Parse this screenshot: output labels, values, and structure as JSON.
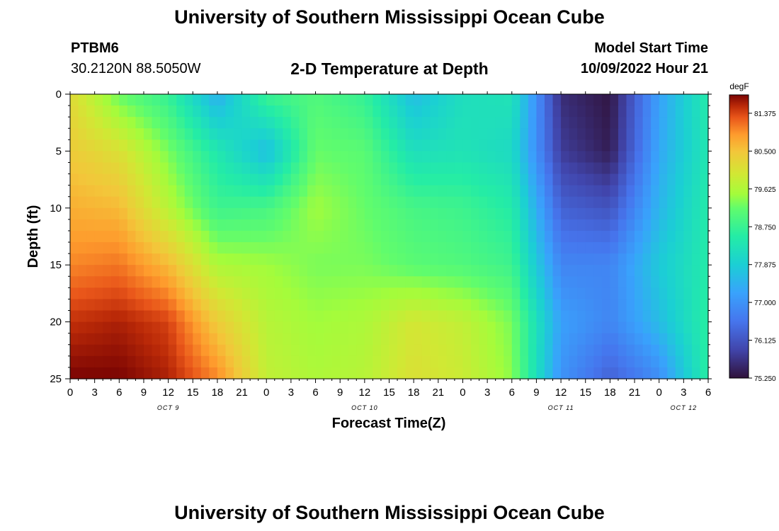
{
  "header": {
    "title": "University of Southern Mississippi Ocean Cube",
    "station": "PTBM6",
    "coords": "30.2120N  88.5050W",
    "chart_title": "2-D Temperature at Depth",
    "model_start_label": "Model Start Time",
    "model_start_value": "10/09/2022 Hour 21"
  },
  "footer": {
    "title": "University of Southern Mississippi Ocean Cube"
  },
  "chart_data": {
    "type": "heatmap",
    "title": "2-D Temperature at Depth",
    "xlabel": "Forecast Time(Z)",
    "ylabel": "Depth (ft)",
    "x_tick_labels": [
      "0",
      "3",
      "6",
      "9",
      "12",
      "15",
      "18",
      "21",
      "0",
      "3",
      "6",
      "9",
      "12",
      "15",
      "18",
      "21",
      "0",
      "3",
      "6",
      "9",
      "12",
      "15",
      "18",
      "21",
      "0",
      "3",
      "6"
    ],
    "x_range_hours": [
      0,
      78
    ],
    "date_labels": [
      {
        "label": "OCT 9",
        "hour": 12
      },
      {
        "label": "OCT 10",
        "hour": 36
      },
      {
        "label": "OCT 11",
        "hour": 60
      },
      {
        "label": "OCT 12",
        "hour": 75
      }
    ],
    "y_tick_labels": [
      "0",
      "5",
      "10",
      "15",
      "20",
      "25"
    ],
    "ylim": [
      0,
      25
    ],
    "y_inverted": true,
    "colorbar": {
      "unit": "degF",
      "min": 75.25,
      "max": 81.8,
      "tick_labels": [
        "81.375",
        "80.500",
        "79.625",
        "78.750",
        "77.875",
        "77.000",
        "76.125",
        "75.250"
      ],
      "ticks": [
        81.375,
        80.5,
        79.625,
        78.75,
        77.875,
        77.0,
        76.125,
        75.25
      ]
    },
    "grid_hours": [
      0,
      6,
      12,
      18,
      24,
      30,
      36,
      42,
      48,
      54,
      60,
      66,
      72,
      78
    ],
    "grid_depths_ft": [
      0,
      5,
      10,
      15,
      20,
      25
    ],
    "values": [
      [
        80.2,
        79.2,
        78.7,
        77.4,
        78.8,
        79.0,
        78.7,
        77.6,
        78.2,
        78.3,
        75.6,
        75.3,
        77.2,
        78.5
      ],
      [
        80.4,
        80.1,
        79.3,
        78.4,
        77.6,
        79.2,
        79.1,
        78.2,
        78.3,
        78.1,
        75.8,
        75.4,
        77.3,
        78.4
      ],
      [
        80.7,
        80.6,
        79.7,
        78.8,
        78.9,
        79.5,
        79.2,
        78.9,
        78.8,
        78.5,
        76.3,
        76.1,
        77.5,
        78.5
      ],
      [
        81.0,
        81.1,
        80.6,
        79.6,
        79.5,
        79.3,
        79.3,
        79.1,
        79.0,
        78.8,
        76.8,
        76.8,
        77.8,
        78.5
      ],
      [
        81.5,
        81.6,
        81.4,
        80.4,
        79.7,
        79.5,
        79.6,
        80.0,
        79.8,
        79.3,
        77.2,
        76.8,
        77.6,
        78.6
      ],
      [
        81.8,
        81.8,
        81.6,
        81.0,
        79.8,
        79.6,
        79.7,
        80.1,
        79.9,
        79.4,
        77.0,
        76.3,
        76.9,
        78.6
      ]
    ]
  }
}
